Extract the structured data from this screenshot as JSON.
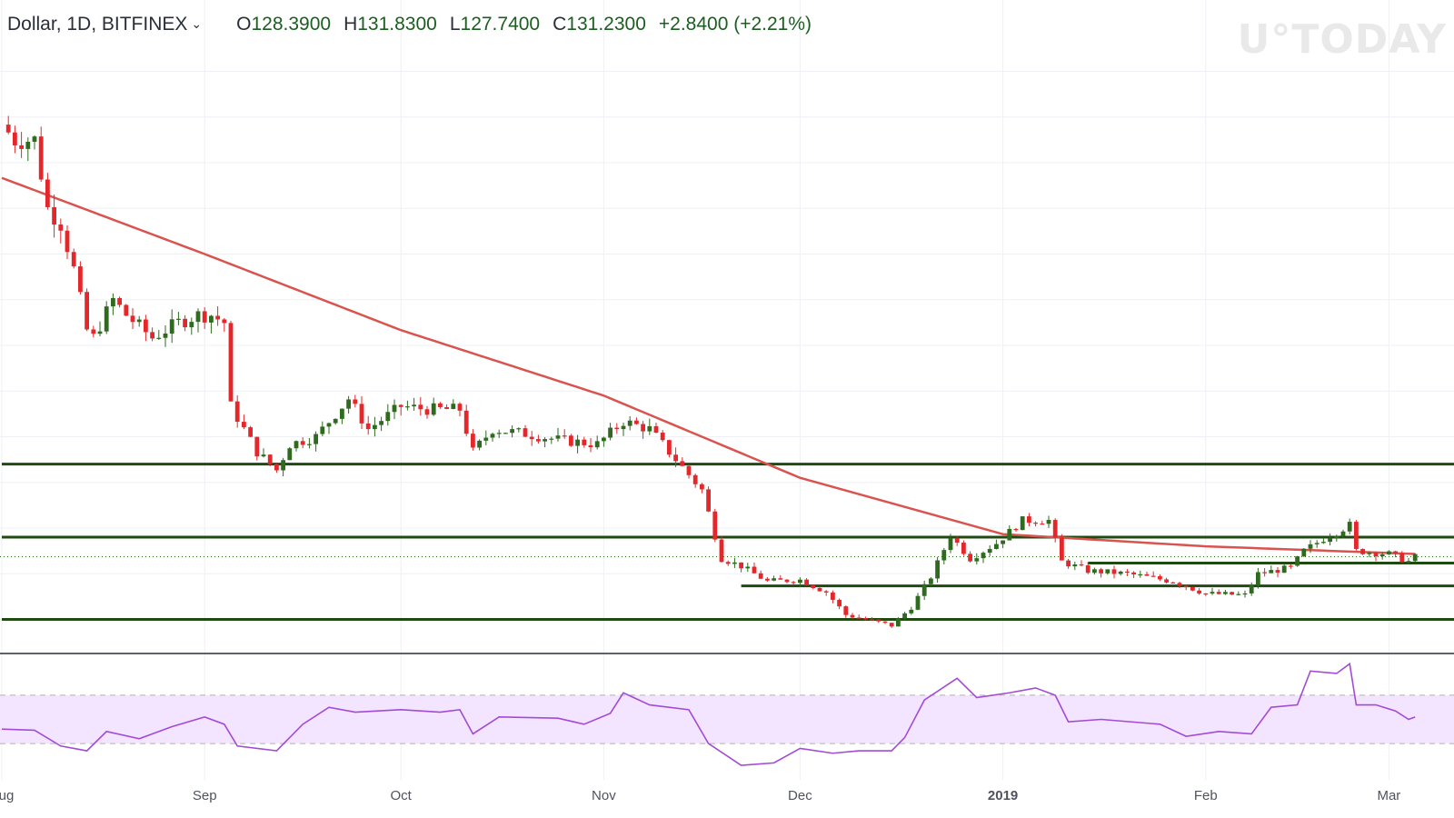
{
  "header": {
    "symbol": "Dollar, 1D, BITFINEX",
    "open_label": "O",
    "open": "128.3900",
    "high_label": "H",
    "high": "131.8300",
    "low_label": "L",
    "low": "127.7400",
    "close_label": "C",
    "close": "131.2300",
    "change": "+2.8400 (+2.21%)"
  },
  "watermark": "U°TODAY",
  "colors": {
    "up": "#2e6b1e",
    "down": "#e3272b",
    "ma": "#d9534f",
    "level": "#1f4a12",
    "rsi_line": "#a24bd6",
    "rsi_band": "#f3e5ff",
    "grid": "#eef0f5"
  },
  "chart_data": [
    {
      "type": "candlestick",
      "interval": "1D",
      "exchange": "BITFINEX",
      "x_axis": {
        "start": "2018-08-01",
        "end": "2019-03-06",
        "ticks": [
          {
            "date": "2018-08-01",
            "label": "Aug"
          },
          {
            "date": "2018-09-01",
            "label": "Sep"
          },
          {
            "date": "2018-10-01",
            "label": "Oct"
          },
          {
            "date": "2018-11-01",
            "label": "Nov"
          },
          {
            "date": "2018-12-01",
            "label": "Dec"
          },
          {
            "date": "2019-01-01",
            "label": "2019",
            "bold": true
          },
          {
            "date": "2019-02-01",
            "label": "Feb"
          },
          {
            "date": "2019-03-01",
            "label": "Mar"
          }
        ]
      },
      "y_range": [
        70,
        470
      ],
      "price_anchors": [
        {
          "date": "2018-08-01",
          "price": 415
        },
        {
          "date": "2018-08-03",
          "price": 405
        },
        {
          "date": "2018-08-06",
          "price": 405
        },
        {
          "date": "2018-08-08",
          "price": 360
        },
        {
          "date": "2018-08-10",
          "price": 350
        },
        {
          "date": "2018-08-12",
          "price": 320
        },
        {
          "date": "2018-08-14",
          "price": 280
        },
        {
          "date": "2018-08-15",
          "price": 275
        },
        {
          "date": "2018-08-18",
          "price": 300
        },
        {
          "date": "2018-08-20",
          "price": 290
        },
        {
          "date": "2018-08-24",
          "price": 275
        },
        {
          "date": "2018-08-28",
          "price": 285
        },
        {
          "date": "2018-08-31",
          "price": 290
        },
        {
          "date": "2018-09-02",
          "price": 290
        },
        {
          "date": "2018-09-04",
          "price": 285
        },
        {
          "date": "2018-09-05",
          "price": 230
        },
        {
          "date": "2018-09-07",
          "price": 215
        },
        {
          "date": "2018-09-09",
          "price": 200
        },
        {
          "date": "2018-09-12",
          "price": 188
        },
        {
          "date": "2018-09-14",
          "price": 205
        },
        {
          "date": "2018-09-18",
          "price": 210
        },
        {
          "date": "2018-09-21",
          "price": 225
        },
        {
          "date": "2018-09-23",
          "price": 235
        },
        {
          "date": "2018-09-26",
          "price": 215
        },
        {
          "date": "2018-10-01",
          "price": 230
        },
        {
          "date": "2018-10-05",
          "price": 228
        },
        {
          "date": "2018-10-10",
          "price": 228
        },
        {
          "date": "2018-10-12",
          "price": 200
        },
        {
          "date": "2018-10-15",
          "price": 215
        },
        {
          "date": "2018-10-20",
          "price": 212
        },
        {
          "date": "2018-10-25",
          "price": 208
        },
        {
          "date": "2018-10-31",
          "price": 205
        },
        {
          "date": "2018-11-04",
          "price": 220
        },
        {
          "date": "2018-11-08",
          "price": 215
        },
        {
          "date": "2018-11-14",
          "price": 185
        },
        {
          "date": "2018-11-16",
          "price": 175
        },
        {
          "date": "2018-11-19",
          "price": 130
        },
        {
          "date": "2018-11-22",
          "price": 125
        },
        {
          "date": "2018-11-26",
          "price": 115
        },
        {
          "date": "2018-12-01",
          "price": 116
        },
        {
          "date": "2018-12-05",
          "price": 108
        },
        {
          "date": "2018-12-08",
          "price": 93
        },
        {
          "date": "2018-12-13",
          "price": 88
        },
        {
          "date": "2018-12-15",
          "price": 86
        },
        {
          "date": "2018-12-18",
          "price": 98
        },
        {
          "date": "2018-12-21",
          "price": 118
        },
        {
          "date": "2018-12-24",
          "price": 145
        },
        {
          "date": "2018-12-27",
          "price": 130
        },
        {
          "date": "2018-12-31",
          "price": 140
        },
        {
          "date": "2019-01-04",
          "price": 155
        },
        {
          "date": "2019-01-08",
          "price": 155
        },
        {
          "date": "2019-01-10",
          "price": 128
        },
        {
          "date": "2019-01-14",
          "price": 122
        },
        {
          "date": "2019-01-20",
          "price": 120
        },
        {
          "date": "2019-01-27",
          "price": 115
        },
        {
          "date": "2019-02-01",
          "price": 107
        },
        {
          "date": "2019-02-07",
          "price": 106
        },
        {
          "date": "2019-02-09",
          "price": 120
        },
        {
          "date": "2019-02-14",
          "price": 124
        },
        {
          "date": "2019-02-16",
          "price": 135
        },
        {
          "date": "2019-02-19",
          "price": 143
        },
        {
          "date": "2019-02-23",
          "price": 152
        },
        {
          "date": "2019-02-24",
          "price": 135
        },
        {
          "date": "2019-03-01",
          "price": 133
        },
        {
          "date": "2019-03-04",
          "price": 128
        },
        {
          "date": "2019-03-05",
          "price": 131
        }
      ],
      "ma": [
        {
          "date": "2018-08-01",
          "price": 380
        },
        {
          "date": "2018-09-01",
          "price": 330
        },
        {
          "date": "2018-10-01",
          "price": 280
        },
        {
          "date": "2018-11-01",
          "price": 237
        },
        {
          "date": "2018-12-01",
          "price": 183
        },
        {
          "date": "2019-01-01",
          "price": 146
        },
        {
          "date": "2019-02-01",
          "price": 138
        },
        {
          "date": "2019-03-05",
          "price": 133
        }
      ],
      "levels": [
        {
          "price": 192,
          "start": "2018-08-01"
        },
        {
          "price": 144,
          "start": "2018-08-01"
        },
        {
          "price": 127,
          "start": "2019-01-14"
        },
        {
          "price": 112,
          "start": "2018-11-22"
        },
        {
          "price": 90,
          "start": "2018-08-01"
        }
      ],
      "last_price": 131.23,
      "rsi": {
        "bands": [
          70,
          30
        ],
        "range": [
          0,
          100
        ],
        "points": [
          {
            "date": "2018-08-01",
            "value": 42
          },
          {
            "date": "2018-08-06",
            "value": 41
          },
          {
            "date": "2018-08-10",
            "value": 28
          },
          {
            "date": "2018-08-14",
            "value": 24
          },
          {
            "date": "2018-08-17",
            "value": 40
          },
          {
            "date": "2018-08-22",
            "value": 34
          },
          {
            "date": "2018-08-27",
            "value": 44
          },
          {
            "date": "2018-09-01",
            "value": 52
          },
          {
            "date": "2018-09-04",
            "value": 46
          },
          {
            "date": "2018-09-06",
            "value": 28
          },
          {
            "date": "2018-09-12",
            "value": 24
          },
          {
            "date": "2018-09-16",
            "value": 46
          },
          {
            "date": "2018-09-20",
            "value": 60
          },
          {
            "date": "2018-09-24",
            "value": 56
          },
          {
            "date": "2018-10-01",
            "value": 58
          },
          {
            "date": "2018-10-07",
            "value": 56
          },
          {
            "date": "2018-10-10",
            "value": 58
          },
          {
            "date": "2018-10-12",
            "value": 38
          },
          {
            "date": "2018-10-16",
            "value": 52
          },
          {
            "date": "2018-10-25",
            "value": 51
          },
          {
            "date": "2018-10-29",
            "value": 46
          },
          {
            "date": "2018-11-02",
            "value": 55
          },
          {
            "date": "2018-11-04",
            "value": 72
          },
          {
            "date": "2018-11-08",
            "value": 62
          },
          {
            "date": "2018-11-14",
            "value": 58
          },
          {
            "date": "2018-11-17",
            "value": 30
          },
          {
            "date": "2018-11-22",
            "value": 12
          },
          {
            "date": "2018-11-27",
            "value": 14
          },
          {
            "date": "2018-12-01",
            "value": 26
          },
          {
            "date": "2018-12-06",
            "value": 22
          },
          {
            "date": "2018-12-10",
            "value": 24
          },
          {
            "date": "2018-12-15",
            "value": 24
          },
          {
            "date": "2018-12-17",
            "value": 35
          },
          {
            "date": "2018-12-20",
            "value": 66
          },
          {
            "date": "2018-12-25",
            "value": 84
          },
          {
            "date": "2018-12-28",
            "value": 68
          },
          {
            "date": "2019-01-02",
            "value": 72
          },
          {
            "date": "2019-01-06",
            "value": 76
          },
          {
            "date": "2019-01-09",
            "value": 70
          },
          {
            "date": "2019-01-11",
            "value": 48
          },
          {
            "date": "2019-01-16",
            "value": 50
          },
          {
            "date": "2019-01-25",
            "value": 46
          },
          {
            "date": "2019-01-29",
            "value": 36
          },
          {
            "date": "2019-02-03",
            "value": 40
          },
          {
            "date": "2019-02-08",
            "value": 38
          },
          {
            "date": "2019-02-11",
            "value": 60
          },
          {
            "date": "2019-02-15",
            "value": 62
          },
          {
            "date": "2019-02-17",
            "value": 90
          },
          {
            "date": "2019-02-21",
            "value": 88
          },
          {
            "date": "2019-02-23",
            "value": 96
          },
          {
            "date": "2019-02-24",
            "value": 62
          },
          {
            "date": "2019-02-27",
            "value": 62
          },
          {
            "date": "2019-03-02",
            "value": 57
          },
          {
            "date": "2019-03-04",
            "value": 50
          },
          {
            "date": "2019-03-05",
            "value": 52
          }
        ]
      }
    }
  ]
}
